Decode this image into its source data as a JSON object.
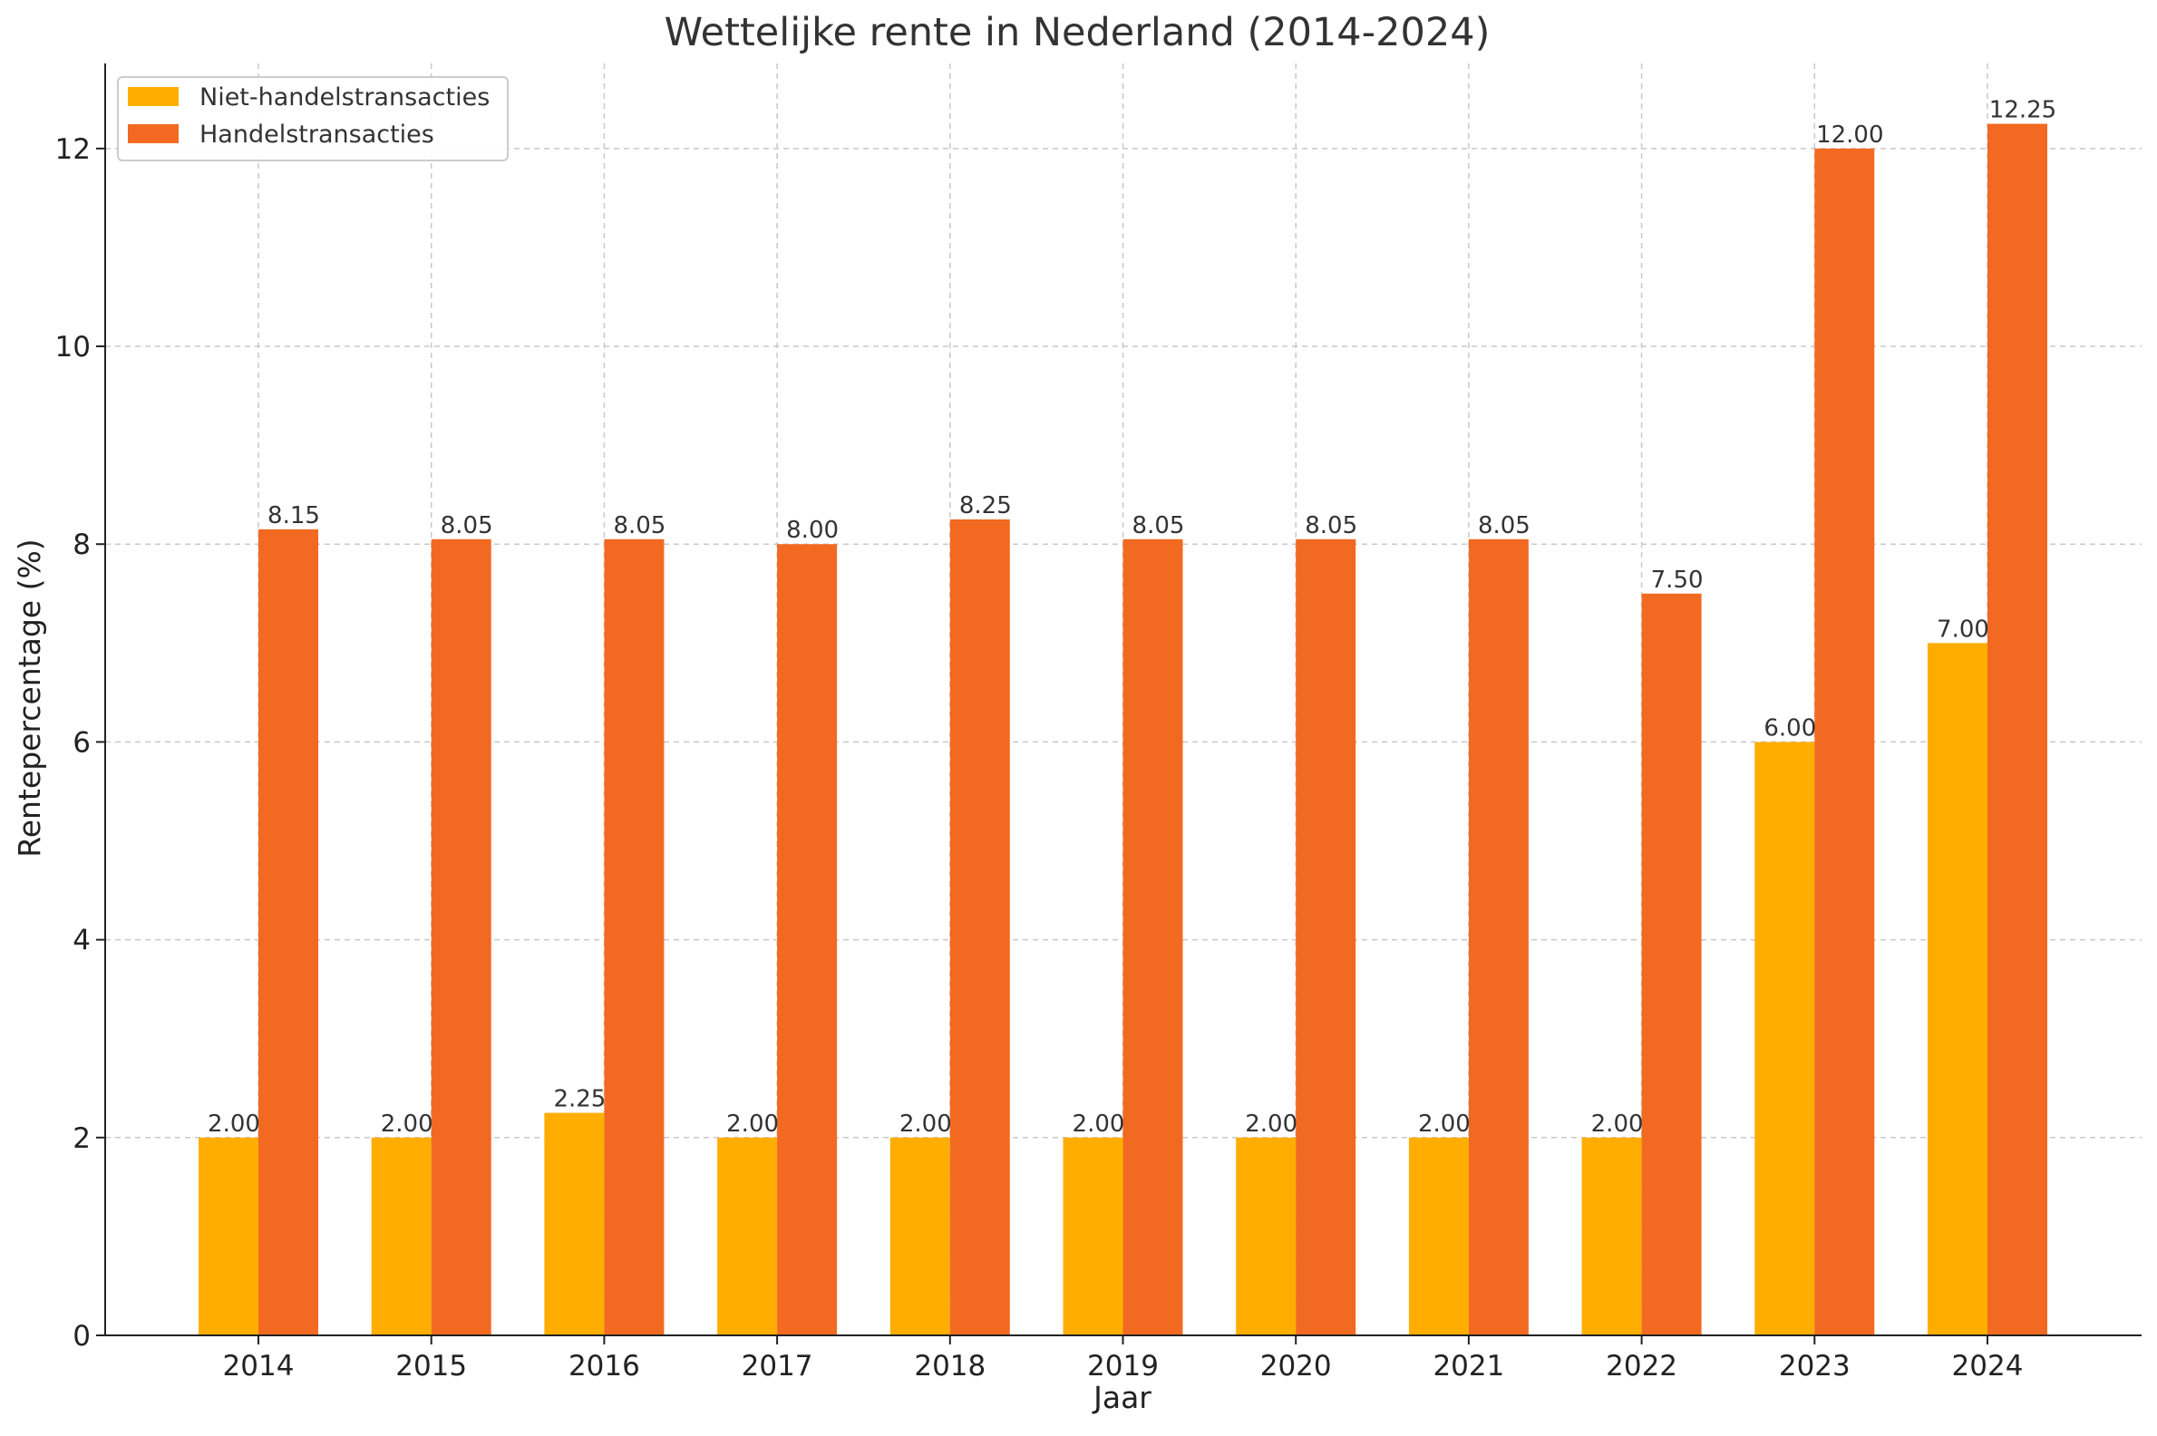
{
  "chart_data": {
    "type": "bar",
    "title": "Wettelijke rente in Nederland (2014-2024)",
    "xlabel": "Jaar",
    "ylabel": "Rentepercentage (%)",
    "categories": [
      "2014",
      "2015",
      "2016",
      "2017",
      "2018",
      "2019",
      "2020",
      "2021",
      "2022",
      "2023",
      "2024"
    ],
    "series": [
      {
        "name": "Niet-handelstransacties",
        "color": "#FFAE00",
        "values": [
          2.0,
          2.0,
          2.25,
          2.0,
          2.0,
          2.0,
          2.0,
          2.0,
          2.0,
          6.0,
          7.0
        ],
        "labels": [
          "2.00",
          "2.00",
          "2.25",
          "2.00",
          "2.00",
          "2.00",
          "2.00",
          "2.00",
          "2.00",
          "6.00",
          "7.00"
        ]
      },
      {
        "name": "Handelstransacties",
        "color": "#F26A21",
        "values": [
          8.15,
          8.05,
          8.05,
          8.0,
          8.25,
          8.05,
          8.05,
          8.05,
          7.5,
          12.0,
          12.25
        ],
        "labels": [
          "8.15",
          "8.05",
          "8.05",
          "8.00",
          "8.25",
          "8.05",
          "8.05",
          "8.05",
          "7.50",
          "12.00",
          "12.25"
        ]
      }
    ],
    "ylim": [
      0,
      12.86
    ],
    "yticks": [
      "0",
      "2",
      "4",
      "6",
      "8",
      "10",
      "12"
    ],
    "grid": true,
    "legend_position": "top-left"
  }
}
